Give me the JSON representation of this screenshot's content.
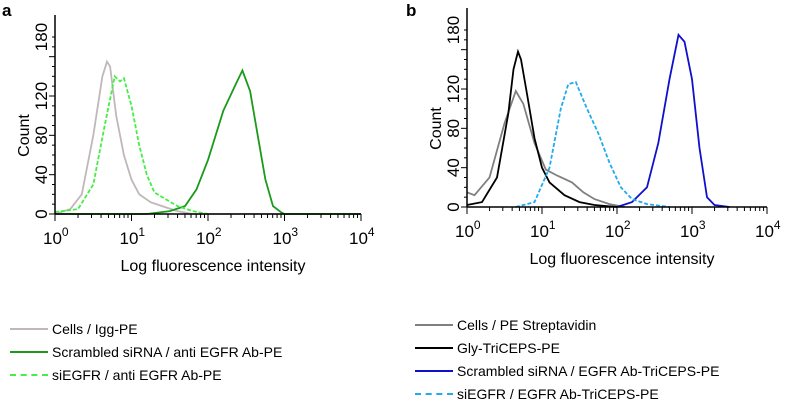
{
  "chart_data": [
    {
      "panel": "a",
      "type": "line",
      "xlabel": "Log fluorescence intensity",
      "ylabel": "Count",
      "xscale": "log",
      "xlim_log10": [
        0,
        4
      ],
      "ylim": [
        0,
        180
      ],
      "xticks": [
        "0",
        "1",
        "2",
        "3",
        "4"
      ],
      "yticks": [
        0,
        40,
        80,
        120,
        180
      ],
      "legend": "below",
      "series": [
        {
          "name": "Cells / Igg-PE",
          "color": "#c0b8b8",
          "dash": false,
          "points": [
            [
              0,
              0
            ],
            [
              0.2,
              5
            ],
            [
              0.35,
              20
            ],
            [
              0.5,
              80
            ],
            [
              0.62,
              140
            ],
            [
              0.68,
              155
            ],
            [
              0.72,
              150
            ],
            [
              0.8,
              100
            ],
            [
              0.9,
              60
            ],
            [
              1.0,
              35
            ],
            [
              1.1,
              20
            ],
            [
              1.25,
              12
            ],
            [
              1.4,
              8
            ],
            [
              1.6,
              3
            ],
            [
              1.8,
              0
            ],
            [
              4,
              0
            ]
          ]
        },
        {
          "name": "Scrambled siRNA / anti EGFR Ab-PE",
          "color": "#1a9a1a",
          "dash": false,
          "points": [
            [
              0,
              0
            ],
            [
              1.2,
              0
            ],
            [
              1.5,
              3
            ],
            [
              1.7,
              8
            ],
            [
              1.85,
              25
            ],
            [
              2.0,
              55
            ],
            [
              2.2,
              105
            ],
            [
              2.35,
              130
            ],
            [
              2.45,
              146
            ],
            [
              2.55,
              125
            ],
            [
              2.65,
              80
            ],
            [
              2.75,
              35
            ],
            [
              2.85,
              8
            ],
            [
              2.95,
              2
            ],
            [
              3.0,
              0
            ],
            [
              4,
              0
            ]
          ]
        },
        {
          "name": "siEGFR / anti EGFR Ab-PE",
          "color": "#44ee44",
          "dash": true,
          "points": [
            [
              0,
              2
            ],
            [
              0.3,
              5
            ],
            [
              0.5,
              30
            ],
            [
              0.65,
              90
            ],
            [
              0.78,
              140
            ],
            [
              0.85,
              135
            ],
            [
              0.9,
              138
            ],
            [
              1.0,
              110
            ],
            [
              1.1,
              70
            ],
            [
              1.2,
              40
            ],
            [
              1.3,
              22
            ],
            [
              1.45,
              15
            ],
            [
              1.6,
              8
            ],
            [
              1.8,
              3
            ],
            [
              2.0,
              0
            ]
          ]
        }
      ]
    },
    {
      "panel": "b",
      "type": "line",
      "xlabel": "Log fluorescence intensity",
      "ylabel": "Count",
      "xscale": "log",
      "xlim_log10": [
        0,
        4
      ],
      "ylim": [
        0,
        180
      ],
      "xticks": [
        "0",
        "1",
        "2",
        "3",
        "4"
      ],
      "yticks": [
        0,
        40,
        80,
        120,
        180
      ],
      "legend": "below",
      "series": [
        {
          "name": "Cells / PE Streptavidin",
          "color": "#808080",
          "dash": false,
          "points": [
            [
              0,
              15
            ],
            [
              0.1,
              12
            ],
            [
              0.3,
              30
            ],
            [
              0.5,
              85
            ],
            [
              0.65,
              118
            ],
            [
              0.75,
              105
            ],
            [
              0.9,
              65
            ],
            [
              1.05,
              38
            ],
            [
              1.2,
              32
            ],
            [
              1.4,
              25
            ],
            [
              1.55,
              15
            ],
            [
              1.7,
              8
            ],
            [
              1.9,
              3
            ],
            [
              2.1,
              0
            ]
          ]
        },
        {
          "name": "Gly-TriCEPS-PE",
          "color": "#000000",
          "dash": false,
          "points": [
            [
              0,
              2
            ],
            [
              0.2,
              5
            ],
            [
              0.4,
              30
            ],
            [
              0.55,
              95
            ],
            [
              0.62,
              140
            ],
            [
              0.68,
              158
            ],
            [
              0.72,
              150
            ],
            [
              0.8,
              115
            ],
            [
              0.9,
              70
            ],
            [
              1.0,
              40
            ],
            [
              1.1,
              25
            ],
            [
              1.3,
              12
            ],
            [
              1.5,
              5
            ],
            [
              1.7,
              2
            ],
            [
              2.0,
              0
            ]
          ]
        },
        {
          "name": "Scrambled siRNA / EGFR Ab-TriCEPS-PE",
          "color": "#1010cc",
          "dash": false,
          "points": [
            [
              2.0,
              0
            ],
            [
              2.2,
              5
            ],
            [
              2.4,
              20
            ],
            [
              2.55,
              65
            ],
            [
              2.7,
              130
            ],
            [
              2.82,
              175
            ],
            [
              2.9,
              168
            ],
            [
              3.0,
              130
            ],
            [
              3.1,
              60
            ],
            [
              3.2,
              10
            ],
            [
              3.3,
              2
            ],
            [
              3.5,
              0
            ]
          ]
        },
        {
          "name": "siEGFR / EGFR Ab-TriCEPS-PE",
          "color": "#22aaee",
          "dash": true,
          "points": [
            [
              0.65,
              0
            ],
            [
              0.9,
              5
            ],
            [
              1.1,
              40
            ],
            [
              1.25,
              100
            ],
            [
              1.35,
              125
            ],
            [
              1.45,
              127
            ],
            [
              1.6,
              100
            ],
            [
              1.75,
              75
            ],
            [
              1.9,
              45
            ],
            [
              2.05,
              20
            ],
            [
              2.2,
              8
            ],
            [
              2.4,
              3
            ],
            [
              2.7,
              0
            ]
          ]
        }
      ]
    }
  ]
}
